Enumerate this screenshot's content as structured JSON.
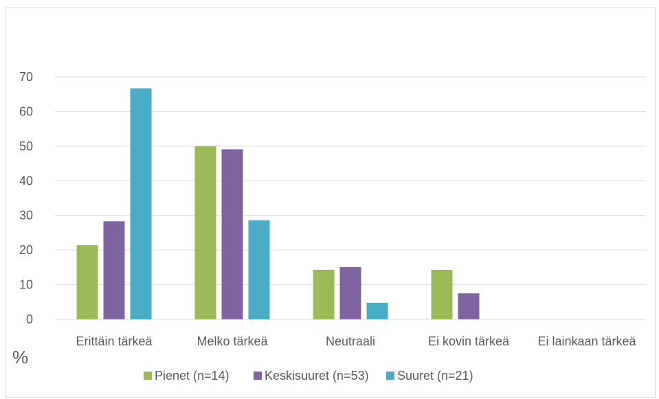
{
  "chart_data": {
    "type": "bar",
    "title": "",
    "xlabel": "",
    "ylabel": "%",
    "ylim": [
      0,
      70
    ],
    "yticks": [
      0,
      10,
      20,
      30,
      40,
      50,
      60,
      70
    ],
    "grid": true,
    "legend_position": "bottom",
    "categories": [
      "Erittäin tärkeä",
      "Melko tärkeä",
      "Neutraali",
      "Ei kovin tärkeä",
      "Ei lainkaan tärkeä"
    ],
    "series": [
      {
        "name": "Pienet (n=14)",
        "color": "#9bbb59",
        "values": [
          21.4,
          50.0,
          14.3,
          14.3,
          0
        ]
      },
      {
        "name": "Keskisuuret (n=53)",
        "color": "#8064a2",
        "values": [
          28.3,
          49.1,
          15.1,
          7.5,
          0
        ]
      },
      {
        "name": "Suuret (n=21)",
        "color": "#4bacc6",
        "values": [
          66.7,
          28.6,
          4.8,
          0,
          0
        ]
      }
    ]
  }
}
